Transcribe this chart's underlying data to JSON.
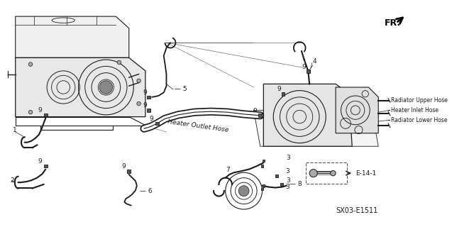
{
  "bg_color": "#ffffff",
  "fig_width": 6.37,
  "fig_height": 3.2,
  "dpi": 100,
  "title_code": "SX03-E1511",
  "fr_label": "FR.",
  "labels": {
    "heater_outlet_hose": "Heater Outlet Hose",
    "radiator_upper_hose": "Radiator Upper Hose",
    "heater_inlet_hose": "Heater Inlet Hose",
    "radiator_lower_hose": "Radiator Lower Hose",
    "e14": "E-14-1"
  },
  "line_color": "#1a1a1a",
  "text_color": "#1a1a1a",
  "gray_fill": "#d0d0d0",
  "light_gray": "#e8e8e8"
}
